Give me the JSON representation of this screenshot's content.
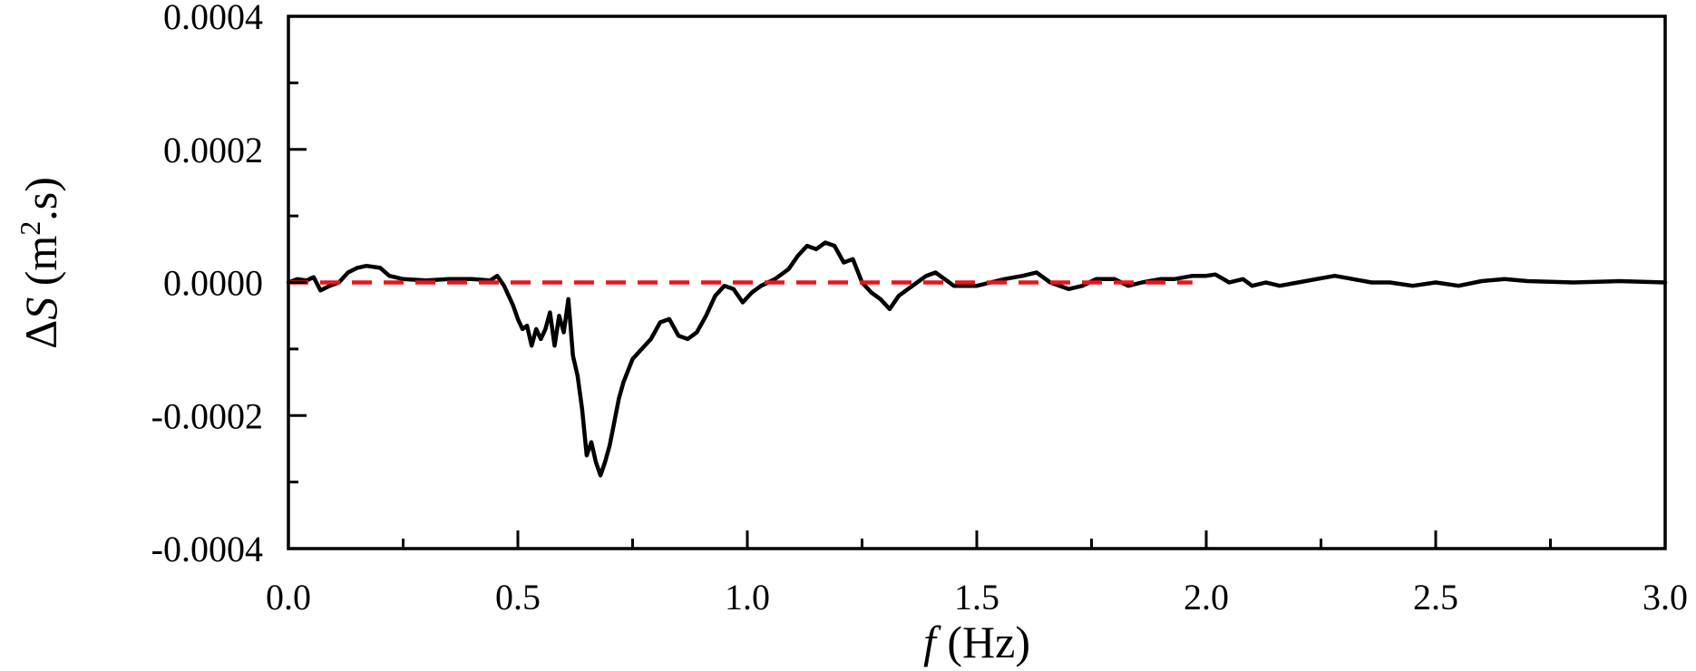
{
  "chart_data": {
    "type": "line",
    "title": "",
    "xlabel": {
      "var": "f",
      "rest": " (Hz)"
    },
    "ylabel": {
      "delta": "Δ",
      "var": "S",
      "rest1": " (m",
      "sup": "2",
      "rest2": ".s)"
    },
    "xlim": [
      0.0,
      3.0
    ],
    "ylim": [
      -0.0004,
      0.0004
    ],
    "xticks": [
      "0.0",
      "0.5",
      "1.0",
      "1.5",
      "2.0",
      "2.5",
      "3.0"
    ],
    "xtick_values": [
      0.0,
      0.5,
      1.0,
      1.5,
      2.0,
      2.5,
      3.0
    ],
    "yticks": [
      "0.0004",
      "0.0002",
      "0.0000",
      "-0.0002",
      "-0.0004"
    ],
    "ytick_values": [
      0.0004,
      0.0002,
      0.0,
      -0.0002,
      -0.0004
    ],
    "grid": false,
    "series": [
      {
        "color": "#000000",
        "style": "solid",
        "x": [
          0.0,
          0.02,
          0.04,
          0.055,
          0.07,
          0.09,
          0.11,
          0.13,
          0.15,
          0.17,
          0.2,
          0.22,
          0.25,
          0.3,
          0.35,
          0.4,
          0.44,
          0.455,
          0.47,
          0.49,
          0.5,
          0.51,
          0.52,
          0.53,
          0.54,
          0.55,
          0.56,
          0.57,
          0.58,
          0.59,
          0.6,
          0.61,
          0.62,
          0.63,
          0.64,
          0.65,
          0.66,
          0.67,
          0.68,
          0.69,
          0.7,
          0.71,
          0.72,
          0.73,
          0.75,
          0.77,
          0.79,
          0.81,
          0.83,
          0.85,
          0.87,
          0.89,
          0.91,
          0.93,
          0.95,
          0.97,
          0.99,
          1.01,
          1.03,
          1.06,
          1.09,
          1.11,
          1.13,
          1.15,
          1.17,
          1.19,
          1.21,
          1.23,
          1.25,
          1.27,
          1.29,
          1.31,
          1.33,
          1.35,
          1.37,
          1.39,
          1.41,
          1.43,
          1.45,
          1.47,
          1.5,
          1.53,
          1.56,
          1.6,
          1.63,
          1.66,
          1.7,
          1.73,
          1.76,
          1.8,
          1.83,
          1.86,
          1.9,
          1.93,
          1.97,
          2.0,
          2.02,
          2.05,
          2.08,
          2.1,
          2.13,
          2.16,
          2.2,
          2.24,
          2.28,
          2.32,
          2.36,
          2.4,
          2.45,
          2.5,
          2.55,
          2.6,
          2.65,
          2.7,
          2.8,
          2.9,
          3.0
        ],
        "y": [
          0.0,
          5e-06,
          3e-06,
          8e-06,
          -1.2e-05,
          -5e-06,
          0.0,
          1.5e-05,
          2.2e-05,
          2.5e-05,
          2.2e-05,
          1e-05,
          5e-06,
          3e-06,
          5e-06,
          5e-06,
          3e-06,
          1e-05,
          -5e-06,
          -3.5e-05,
          -5.5e-05,
          -7e-05,
          -6.5e-05,
          -9.5e-05,
          -7e-05,
          -8.5e-05,
          -7e-05,
          -4.5e-05,
          -9.5e-05,
          -5e-05,
          -7.5e-05,
          -2.5e-05,
          -0.00011,
          -0.00014,
          -0.00019,
          -0.00026,
          -0.00024,
          -0.00027,
          -0.00029,
          -0.00027,
          -0.000245,
          -0.00021,
          -0.000175,
          -0.00015,
          -0.000115,
          -0.0001,
          -8.5e-05,
          -6e-05,
          -5.5e-05,
          -8e-05,
          -8.5e-05,
          -7.5e-05,
          -5e-05,
          -2e-05,
          -5e-06,
          -1e-05,
          -3e-05,
          -1.5e-05,
          -5e-06,
          5e-06,
          2e-05,
          4e-05,
          5.5e-05,
          5e-05,
          6e-05,
          5.5e-05,
          3e-05,
          3.5e-05,
          0.0,
          -1.5e-05,
          -2.5e-05,
          -4e-05,
          -2e-05,
          -1e-05,
          0.0,
          1e-05,
          1.5e-05,
          5e-06,
          -5e-06,
          -5e-06,
          -5e-06,
          0.0,
          5e-06,
          1e-05,
          1.5e-05,
          0.0,
          -1e-05,
          -5e-06,
          5e-06,
          5e-06,
          -5e-06,
          0.0,
          5e-06,
          5e-06,
          1e-05,
          1e-05,
          1.2e-05,
          0.0,
          5e-06,
          -5e-06,
          0.0,
          -5e-06,
          0.0,
          5e-06,
          1e-05,
          5e-06,
          0.0,
          0.0,
          -5e-06,
          0.0,
          -5e-06,
          2e-06,
          5e-06,
          2e-06,
          0.0,
          2e-06,
          0.0
        ]
      },
      {
        "color": "#e8161b",
        "style": "dashed",
        "x": [
          0.0,
          1.97
        ],
        "y": [
          0.0,
          0.0
        ]
      }
    ]
  }
}
